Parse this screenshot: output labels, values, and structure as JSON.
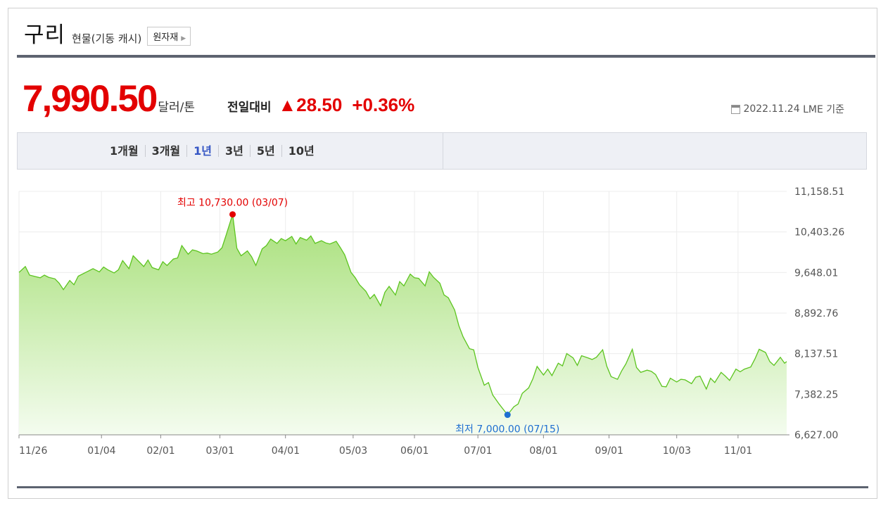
{
  "header": {
    "name": "구리",
    "subtitle": "현물(기동 캐시)",
    "category_button": "원자재",
    "category_arrow_icon": "triangle-right-icon"
  },
  "price": {
    "value": "7,990.50",
    "unit": "달러/톤",
    "compare_label": "전일대비",
    "change_icon": "up-triangle-icon",
    "change_symbol": "▲",
    "change": "28.50",
    "change_pct": "+0.36%"
  },
  "asof": {
    "icon": "calendar-icon",
    "date": "2022.11.24",
    "source": "LME 기준"
  },
  "periods": {
    "tabs": [
      "1개월",
      "3개월",
      "1년",
      "3년",
      "5년",
      "10년"
    ],
    "active": "1년"
  },
  "colors": {
    "up": "#e30000",
    "down": "#1f6fd1",
    "line": "#5cc41f",
    "fill_top": "#a8e07a",
    "active_tab": "#3455c4"
  },
  "chart_data": {
    "type": "area",
    "x_ticks": [
      "11/26",
      "01/04",
      "02/01",
      "03/01",
      "04/01",
      "05/03",
      "06/01",
      "07/01",
      "08/01",
      "09/01",
      "10/03",
      "11/01"
    ],
    "y_ticks": [
      "11,158.51",
      "10,403.26",
      "9,648.01",
      "8,892.76",
      "8,137.51",
      "7,382.25",
      "6,627.00"
    ],
    "ylim": [
      6627.0,
      11158.51
    ],
    "grid": true,
    "high": {
      "label": "최고 10,730.00 (03/07)",
      "x": "03/07",
      "value": 10730.0,
      "color": "#e30000"
    },
    "low": {
      "label": "최저 7,000.00 (07/15)",
      "x": "07/15",
      "value": 7000.0,
      "color": "#1f6fd1"
    },
    "series": [
      {
        "x": [
          "2021-11-26",
          "2021-11-29",
          "2021-12-01",
          "2021-12-03",
          "2021-12-06",
          "2021-12-08",
          "2021-12-10",
          "2021-12-13",
          "2021-12-15",
          "2021-12-17",
          "2021-12-20",
          "2021-12-22",
          "2021-12-24",
          "2021-12-27",
          "2021-12-29",
          "2021-12-31",
          "2022-01-03",
          "2022-01-05",
          "2022-01-07",
          "2022-01-10",
          "2022-01-12",
          "2022-01-14",
          "2022-01-17",
          "2022-01-19",
          "2022-01-21",
          "2022-01-24",
          "2022-01-26",
          "2022-01-28",
          "2022-01-31",
          "2022-02-02",
          "2022-02-04",
          "2022-02-07",
          "2022-02-09",
          "2022-02-11",
          "2022-02-14",
          "2022-02-16",
          "2022-02-18",
          "2022-02-21",
          "2022-02-23",
          "2022-02-25",
          "2022-02-28",
          "2022-03-02",
          "2022-03-04",
          "2022-03-07",
          "2022-03-09",
          "2022-03-11",
          "2022-03-14",
          "2022-03-16",
          "2022-03-18",
          "2022-03-21",
          "2022-03-23",
          "2022-03-25",
          "2022-03-28",
          "2022-03-30",
          "2022-04-01",
          "2022-04-04",
          "2022-04-06",
          "2022-04-08",
          "2022-04-11",
          "2022-04-13",
          "2022-04-15",
          "2022-04-18",
          "2022-04-20",
          "2022-04-22",
          "2022-04-25",
          "2022-04-27",
          "2022-04-29",
          "2022-05-02",
          "2022-05-04",
          "2022-05-06",
          "2022-05-09",
          "2022-05-11",
          "2022-05-13",
          "2022-05-16",
          "2022-05-18",
          "2022-05-20",
          "2022-05-23",
          "2022-05-25",
          "2022-05-27",
          "2022-05-30",
          "2022-06-01",
          "2022-06-03",
          "2022-06-06",
          "2022-06-08",
          "2022-06-10",
          "2022-06-13",
          "2022-06-15",
          "2022-06-17",
          "2022-06-20",
          "2022-06-22",
          "2022-06-24",
          "2022-06-27",
          "2022-06-29",
          "2022-07-01",
          "2022-07-04",
          "2022-07-06",
          "2022-07-08",
          "2022-07-11",
          "2022-07-13",
          "2022-07-15",
          "2022-07-18",
          "2022-07-20",
          "2022-07-22",
          "2022-07-25",
          "2022-07-27",
          "2022-07-29",
          "2022-08-01",
          "2022-08-03",
          "2022-08-05",
          "2022-08-08",
          "2022-08-10",
          "2022-08-12",
          "2022-08-15",
          "2022-08-17",
          "2022-08-19",
          "2022-08-22",
          "2022-08-24",
          "2022-08-26",
          "2022-08-29",
          "2022-08-31",
          "2022-09-02",
          "2022-09-05",
          "2022-09-07",
          "2022-09-09",
          "2022-09-12",
          "2022-09-14",
          "2022-09-16",
          "2022-09-19",
          "2022-09-21",
          "2022-09-23",
          "2022-09-26",
          "2022-09-28",
          "2022-09-30",
          "2022-10-03",
          "2022-10-05",
          "2022-10-07",
          "2022-10-10",
          "2022-10-12",
          "2022-10-14",
          "2022-10-17",
          "2022-10-19",
          "2022-10-21",
          "2022-10-24",
          "2022-10-26",
          "2022-10-28",
          "2022-10-31",
          "2022-11-02",
          "2022-11-04",
          "2022-11-07",
          "2022-11-09",
          "2022-11-11",
          "2022-11-14",
          "2022-11-16",
          "2022-11-18",
          "2022-11-21",
          "2022-11-23",
          "2022-11-24"
        ],
        "values": [
          9650,
          9760,
          9600,
          9580,
          9550,
          9600,
          9560,
          9530,
          9450,
          9330,
          9500,
          9420,
          9580,
          9640,
          9680,
          9720,
          9660,
          9750,
          9700,
          9640,
          9700,
          9870,
          9720,
          9960,
          9880,
          9760,
          9880,
          9740,
          9700,
          9850,
          9780,
          9900,
          9920,
          10150,
          9990,
          10070,
          10050,
          10000,
          10010,
          9990,
          10030,
          10110,
          10350,
          10730,
          10100,
          9960,
          10050,
          9940,
          9780,
          10090,
          10150,
          10270,
          10190,
          10280,
          10240,
          10320,
          10180,
          10300,
          10250,
          10330,
          10190,
          10240,
          10200,
          10180,
          10230,
          10110,
          9980,
          9650,
          9550,
          9420,
          9300,
          9160,
          9240,
          9030,
          9280,
          9390,
          9230,
          9480,
          9400,
          9620,
          9550,
          9540,
          9400,
          9660,
          9560,
          9450,
          9230,
          9180,
          8950,
          8660,
          8450,
          8230,
          8210,
          7880,
          7550,
          7600,
          7370,
          7200,
          7100,
          7000,
          7150,
          7200,
          7400,
          7500,
          7670,
          7900,
          7740,
          7850,
          7730,
          7960,
          7910,
          8140,
          8060,
          7920,
          8100,
          8060,
          8030,
          8070,
          8210,
          7900,
          7710,
          7660,
          7820,
          7950,
          8220,
          7880,
          7790,
          7830,
          7810,
          7750,
          7530,
          7520,
          7680,
          7610,
          7660,
          7650,
          7580,
          7700,
          7720,
          7480,
          7680,
          7600,
          7790,
          7720,
          7640,
          7850,
          7800,
          7850,
          7890,
          8040,
          8220,
          8160,
          7990,
          7920,
          8070,
          7960,
          7990
        ]
      }
    ]
  }
}
